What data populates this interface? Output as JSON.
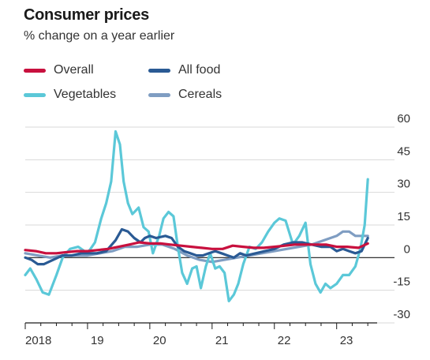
{
  "chart_data": {
    "type": "line",
    "title": "Consumer prices",
    "subtitle": "% change on a year earlier",
    "xlabel": "",
    "ylabel": "",
    "xlim": [
      2018.0,
      2023.65
    ],
    "ylim": [
      -30,
      60
    ],
    "yticks": [
      60,
      45,
      30,
      15,
      0,
      -15,
      -30
    ],
    "xtick_labels": [
      {
        "label": "2018",
        "x": 2018.0
      },
      {
        "label": "19",
        "x": 2019.0
      },
      {
        "label": "20",
        "x": 2020.0
      },
      {
        "label": "21",
        "x": 2021.0
      },
      {
        "label": "22",
        "x": 2022.0
      },
      {
        "label": "23",
        "x": 2023.0
      }
    ],
    "grid": "horizontal",
    "zero_line": true,
    "y_axis_side": "right",
    "legend_position": "top-left",
    "series": [
      {
        "name": "Overall",
        "color": "#c8103e",
        "x": [
          2018.0,
          2018.17,
          2018.33,
          2018.5,
          2018.67,
          2018.83,
          2019.0,
          2019.17,
          2019.33,
          2019.5,
          2019.67,
          2019.83,
          2020.0,
          2020.17,
          2020.33,
          2020.5,
          2020.67,
          2020.83,
          2021.0,
          2021.17,
          2021.33,
          2021.5,
          2021.67,
          2021.83,
          2022.0,
          2022.17,
          2022.33,
          2022.5,
          2022.67,
          2022.83,
          2023.0,
          2023.17,
          2023.35,
          2023.5
        ],
        "y": [
          3.5,
          3,
          2,
          2,
          2.5,
          3,
          3,
          3.5,
          4,
          5,
          6,
          7,
          6.5,
          6.5,
          6,
          5.5,
          5,
          4.5,
          4,
          4,
          5.5,
          5,
          4.5,
          4.5,
          5,
          5.5,
          6,
          6,
          6,
          6,
          5,
          5,
          4.5,
          6.5
        ]
      },
      {
        "name": "All food",
        "color": "#2a5a94",
        "x": [
          2018.0,
          2018.1,
          2018.2,
          2018.3,
          2018.45,
          2018.6,
          2018.75,
          2018.9,
          2019.0,
          2019.15,
          2019.3,
          2019.45,
          2019.55,
          2019.65,
          2019.75,
          2019.85,
          2019.92,
          2020.0,
          2020.1,
          2020.25,
          2020.35,
          2020.45,
          2020.55,
          2020.65,
          2020.75,
          2020.85,
          2020.95,
          2021.05,
          2021.15,
          2021.25,
          2021.35,
          2021.45,
          2021.55,
          2021.7,
          2021.85,
          2022.0,
          2022.15,
          2022.3,
          2022.45,
          2022.6,
          2022.75,
          2022.9,
          2023.0,
          2023.1,
          2023.2,
          2023.3,
          2023.4,
          2023.5
        ],
        "y": [
          0,
          -1,
          -3,
          -3,
          -1,
          1,
          1,
          2,
          2,
          2,
          3,
          8,
          13,
          12,
          9,
          7,
          9,
          10,
          9,
          10,
          9,
          5,
          3,
          2,
          1,
          1,
          2,
          3,
          2,
          1,
          0,
          2,
          1,
          2,
          3,
          4,
          6,
          7,
          7,
          6,
          5,
          5,
          3,
          4,
          3,
          2,
          3,
          9
        ]
      },
      {
        "name": "Vegetables",
        "color": "#5bc8d8",
        "x": [
          2018.0,
          2018.08,
          2018.18,
          2018.28,
          2018.38,
          2018.5,
          2018.6,
          2018.72,
          2018.85,
          2019.0,
          2019.12,
          2019.22,
          2019.3,
          2019.38,
          2019.45,
          2019.52,
          2019.58,
          2019.65,
          2019.72,
          2019.82,
          2019.9,
          2019.98,
          2020.05,
          2020.15,
          2020.22,
          2020.3,
          2020.38,
          2020.45,
          2020.52,
          2020.6,
          2020.68,
          2020.75,
          2020.82,
          2020.9,
          2020.97,
          2021.05,
          2021.12,
          2021.2,
          2021.27,
          2021.35,
          2021.42,
          2021.5,
          2021.6,
          2021.7,
          2021.8,
          2021.9,
          2022.0,
          2022.08,
          2022.18,
          2022.3,
          2022.4,
          2022.5,
          2022.58,
          2022.66,
          2022.74,
          2022.82,
          2022.9,
          2023.0,
          2023.1,
          2023.2,
          2023.3,
          2023.38,
          2023.45,
          2023.5
        ],
        "y": [
          -8,
          -5,
          -10,
          -16,
          -17,
          -8,
          0,
          4,
          5,
          2,
          7,
          18,
          25,
          35,
          58,
          52,
          35,
          25,
          20,
          23,
          14,
          12,
          2,
          10,
          18,
          21,
          19,
          5,
          -7,
          -12,
          -5,
          -4,
          -14,
          -4,
          2,
          -5,
          -4,
          -7,
          -20,
          -17,
          -12,
          -3,
          5,
          4,
          7,
          12,
          16,
          18,
          17,
          6,
          10,
          16,
          -3,
          -12,
          -16,
          -12,
          -14,
          -12,
          -8,
          -8,
          -4,
          4,
          15,
          36
        ]
      },
      {
        "name": "Cereals",
        "color": "#7f9dc2",
        "x": [
          2018.0,
          2018.2,
          2018.4,
          2018.6,
          2018.8,
          2019.0,
          2019.2,
          2019.4,
          2019.6,
          2019.8,
          2020.0,
          2020.2,
          2020.4,
          2020.6,
          2020.8,
          2021.0,
          2021.2,
          2021.4,
          2021.6,
          2021.8,
          2022.0,
          2022.2,
          2022.4,
          2022.6,
          2022.8,
          2023.0,
          2023.1,
          2023.2,
          2023.3,
          2023.5
        ],
        "y": [
          2,
          1,
          0,
          1,
          1,
          1,
          2,
          3,
          5,
          5,
          6,
          6,
          4,
          1,
          -1,
          -2,
          -1,
          0,
          1,
          2,
          3,
          4,
          5,
          6,
          8,
          10,
          12,
          12,
          10,
          10
        ]
      }
    ]
  }
}
